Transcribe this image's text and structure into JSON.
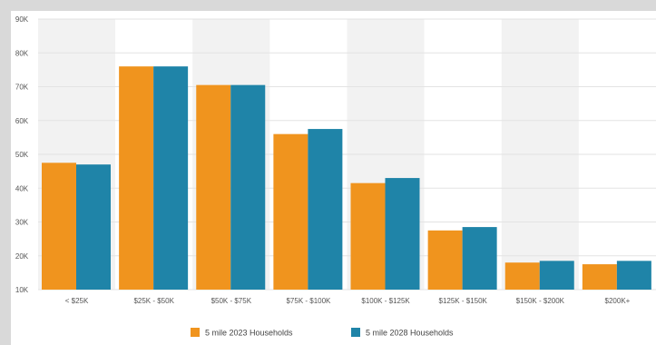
{
  "chart_data": {
    "type": "bar",
    "title": "",
    "xlabel": "",
    "ylabel": "",
    "categories": [
      "< $25K",
      "$25K - $50K",
      "$50K - $75K",
      "$75K - $100K",
      "$100K - $125K",
      "$125K - $150K",
      "$150K - $200K",
      "$200K+"
    ],
    "series": [
      {
        "name": "5 mile 2023 Households",
        "color": "#f0941e",
        "values": [
          47.5,
          76,
          70.5,
          56,
          41.5,
          27.5,
          18,
          17.5
        ]
      },
      {
        "name": "5 mile 2028 Households",
        "color": "#1f84a8",
        "values": [
          47,
          76,
          70.5,
          57.5,
          43,
          28.5,
          18.5,
          18.5
        ]
      }
    ],
    "ylim": [
      10,
      90
    ],
    "yticks": [
      10,
      20,
      30,
      40,
      50,
      60,
      70,
      80,
      90
    ],
    "ytick_labels": [
      "10K",
      "20K",
      "30K",
      "40K",
      "50K",
      "60K",
      "70K",
      "80K",
      "90K"
    ],
    "grid": true,
    "legend_position": "bottom-center",
    "band_colors": [
      "#f2f2f2",
      "#ffffff"
    ]
  }
}
